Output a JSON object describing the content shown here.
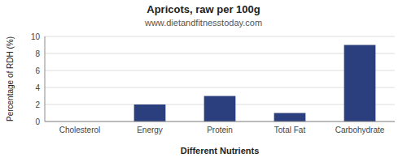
{
  "chart_data": {
    "type": "bar",
    "title": "Apricots, raw per 100g",
    "subtitle": "www.dietandfitnesstoday.com",
    "categories": [
      "Cholesterol",
      "Energy",
      "Protein",
      "Total Fat",
      "Carbohydrate"
    ],
    "values": [
      0,
      2,
      3,
      1,
      9
    ],
    "color": "#2b3f7e",
    "xlabel": "Different Nutrients",
    "ylabel": "Percentage of RDH (%)",
    "ylim": [
      0,
      10
    ],
    "yticks": [
      0,
      2,
      4,
      6,
      8,
      10
    ],
    "grid": true
  }
}
